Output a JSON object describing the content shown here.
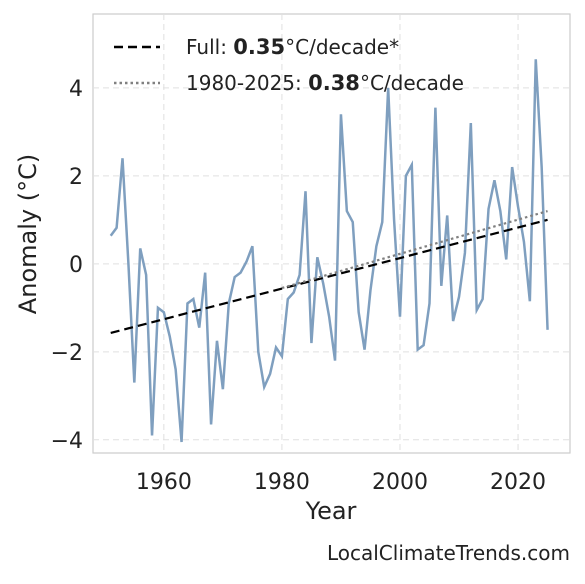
{
  "chart_data": {
    "type": "line",
    "x_label": "Year",
    "y_label": "Anomaly (°C)",
    "source": "LocalClimateTrends.com",
    "xlim": [
      1948,
      2028.8
    ],
    "ylim": [
      -4.3,
      5.68
    ],
    "xticks": [
      1960,
      1980,
      2000,
      2020
    ],
    "yticks": [
      {
        "value": -4,
        "label": "−4"
      },
      {
        "value": -2,
        "label": "−2"
      },
      0,
      2,
      4
    ],
    "grid": true,
    "legend": "upper left",
    "x": [
      1951,
      1952,
      1953,
      1954,
      1955,
      1956,
      1957,
      1958,
      1959,
      1960,
      1961,
      1962,
      1963,
      1964,
      1965,
      1966,
      1967,
      1968,
      1969,
      1970,
      1971,
      1972,
      1973,
      1974,
      1975,
      1976,
      1977,
      1978,
      1979,
      1980,
      1981,
      1982,
      1983,
      1984,
      1985,
      1986,
      1987,
      1988,
      1989,
      1990,
      1991,
      1992,
      1993,
      1994,
      1995,
      1996,
      1997,
      1998,
      1999,
      2000,
      2001,
      2002,
      2003,
      2004,
      2005,
      2006,
      2007,
      2008,
      2009,
      2010,
      2011,
      2012,
      2013,
      2014,
      2015,
      2016,
      2017,
      2018,
      2019,
      2020,
      2021,
      2022,
      2023,
      2024,
      2025
    ],
    "series": [
      {
        "color": "#7f9fbf",
        "style": "solid",
        "values": [
          0.64,
          0.82,
          2.4,
          0.0,
          -2.7,
          0.35,
          -0.25,
          -3.9,
          -1.0,
          -1.1,
          -1.65,
          -2.4,
          -4.05,
          -0.9,
          -0.8,
          -1.45,
          -0.2,
          -3.65,
          -1.75,
          -2.85,
          -0.9,
          -0.3,
          -0.2,
          0.05,
          0.4,
          -2.0,
          -2.8,
          -2.5,
          -1.9,
          -2.1,
          -0.8,
          -0.65,
          -0.25,
          1.65,
          -1.8,
          0.15,
          -0.45,
          -1.2,
          -2.2,
          3.4,
          1.2,
          0.95,
          -1.1,
          -1.95,
          -0.6,
          0.4,
          0.95,
          4.0,
          1.0,
          -1.2,
          2.0,
          2.25,
          -1.95,
          -1.85,
          -0.9,
          3.55,
          -0.5,
          1.1,
          -1.3,
          -0.75,
          0.25,
          3.2,
          -1.05,
          -0.8,
          1.25,
          1.9,
          1.2,
          0.1,
          2.2,
          1.3,
          0.5,
          -0.85,
          4.65,
          2.2,
          -1.5
        ]
      }
    ],
    "trends": [
      {
        "label_prefix": "Full: ",
        "rate": 0.35,
        "label_suffix": "°C/decade*",
        "color": "#000000",
        "style": "dashed",
        "x": [
          1951,
          2025
        ],
        "values": [
          -1.57,
          1.0
        ]
      },
      {
        "label_prefix": "1980-2025: ",
        "rate": 0.38,
        "label_suffix": "°C/decade",
        "color": "#808080",
        "style": "dotted",
        "x": [
          1980,
          2025
        ],
        "values": [
          -0.55,
          1.2
        ]
      }
    ]
  }
}
